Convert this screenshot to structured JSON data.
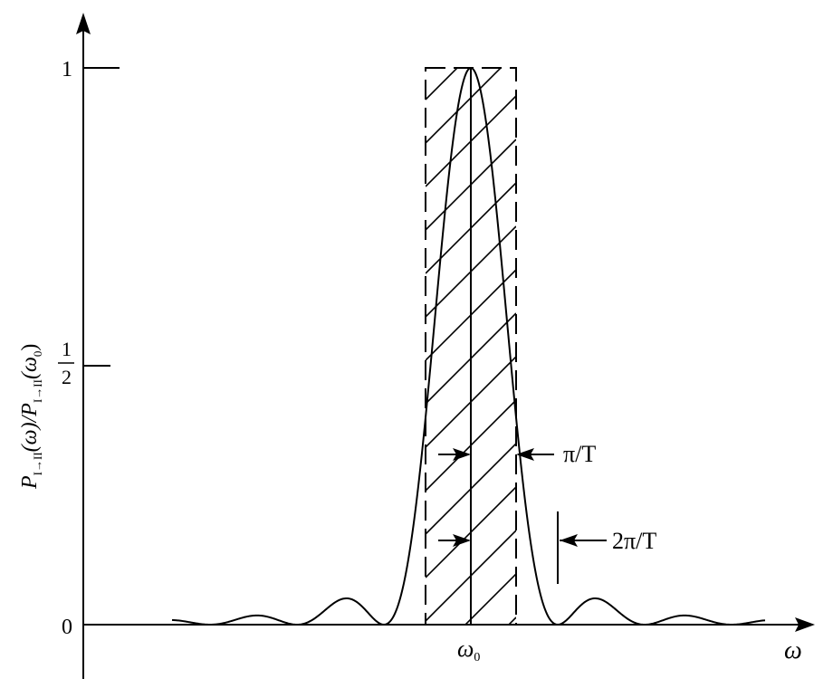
{
  "chart_data": {
    "type": "line",
    "title": "",
    "xlabel": "ω",
    "ylabel_parts": {
      "p1": "P",
      "sub1": "I→II",
      "mid": "(ω)/",
      "p2": "P",
      "sub2": "I→II",
      "end": "(ω",
      "sub3": "0",
      "close": ")"
    },
    "y_ticks": [
      {
        "value": 0,
        "label": "0"
      },
      {
        "value": 0.5,
        "label_num": "1",
        "label_den": "2"
      },
      {
        "value": 1,
        "label": "1"
      }
    ],
    "x_ticks": [
      {
        "label": "ω",
        "sub": "0"
      }
    ],
    "ylim": [
      0,
      1
    ],
    "curve": "sinc-squared centered at ω0, peak 1, first zeros at ω0 ± 2π/T",
    "rectangle": {
      "height": 1,
      "half_width": "π/T",
      "hatched": true,
      "dashed": true
    },
    "annotations": [
      {
        "label": "π/T",
        "meaning": "half-width of shaded rectangle"
      },
      {
        "label": "2π/T",
        "meaning": "distance from ω0 to first zero"
      }
    ]
  }
}
